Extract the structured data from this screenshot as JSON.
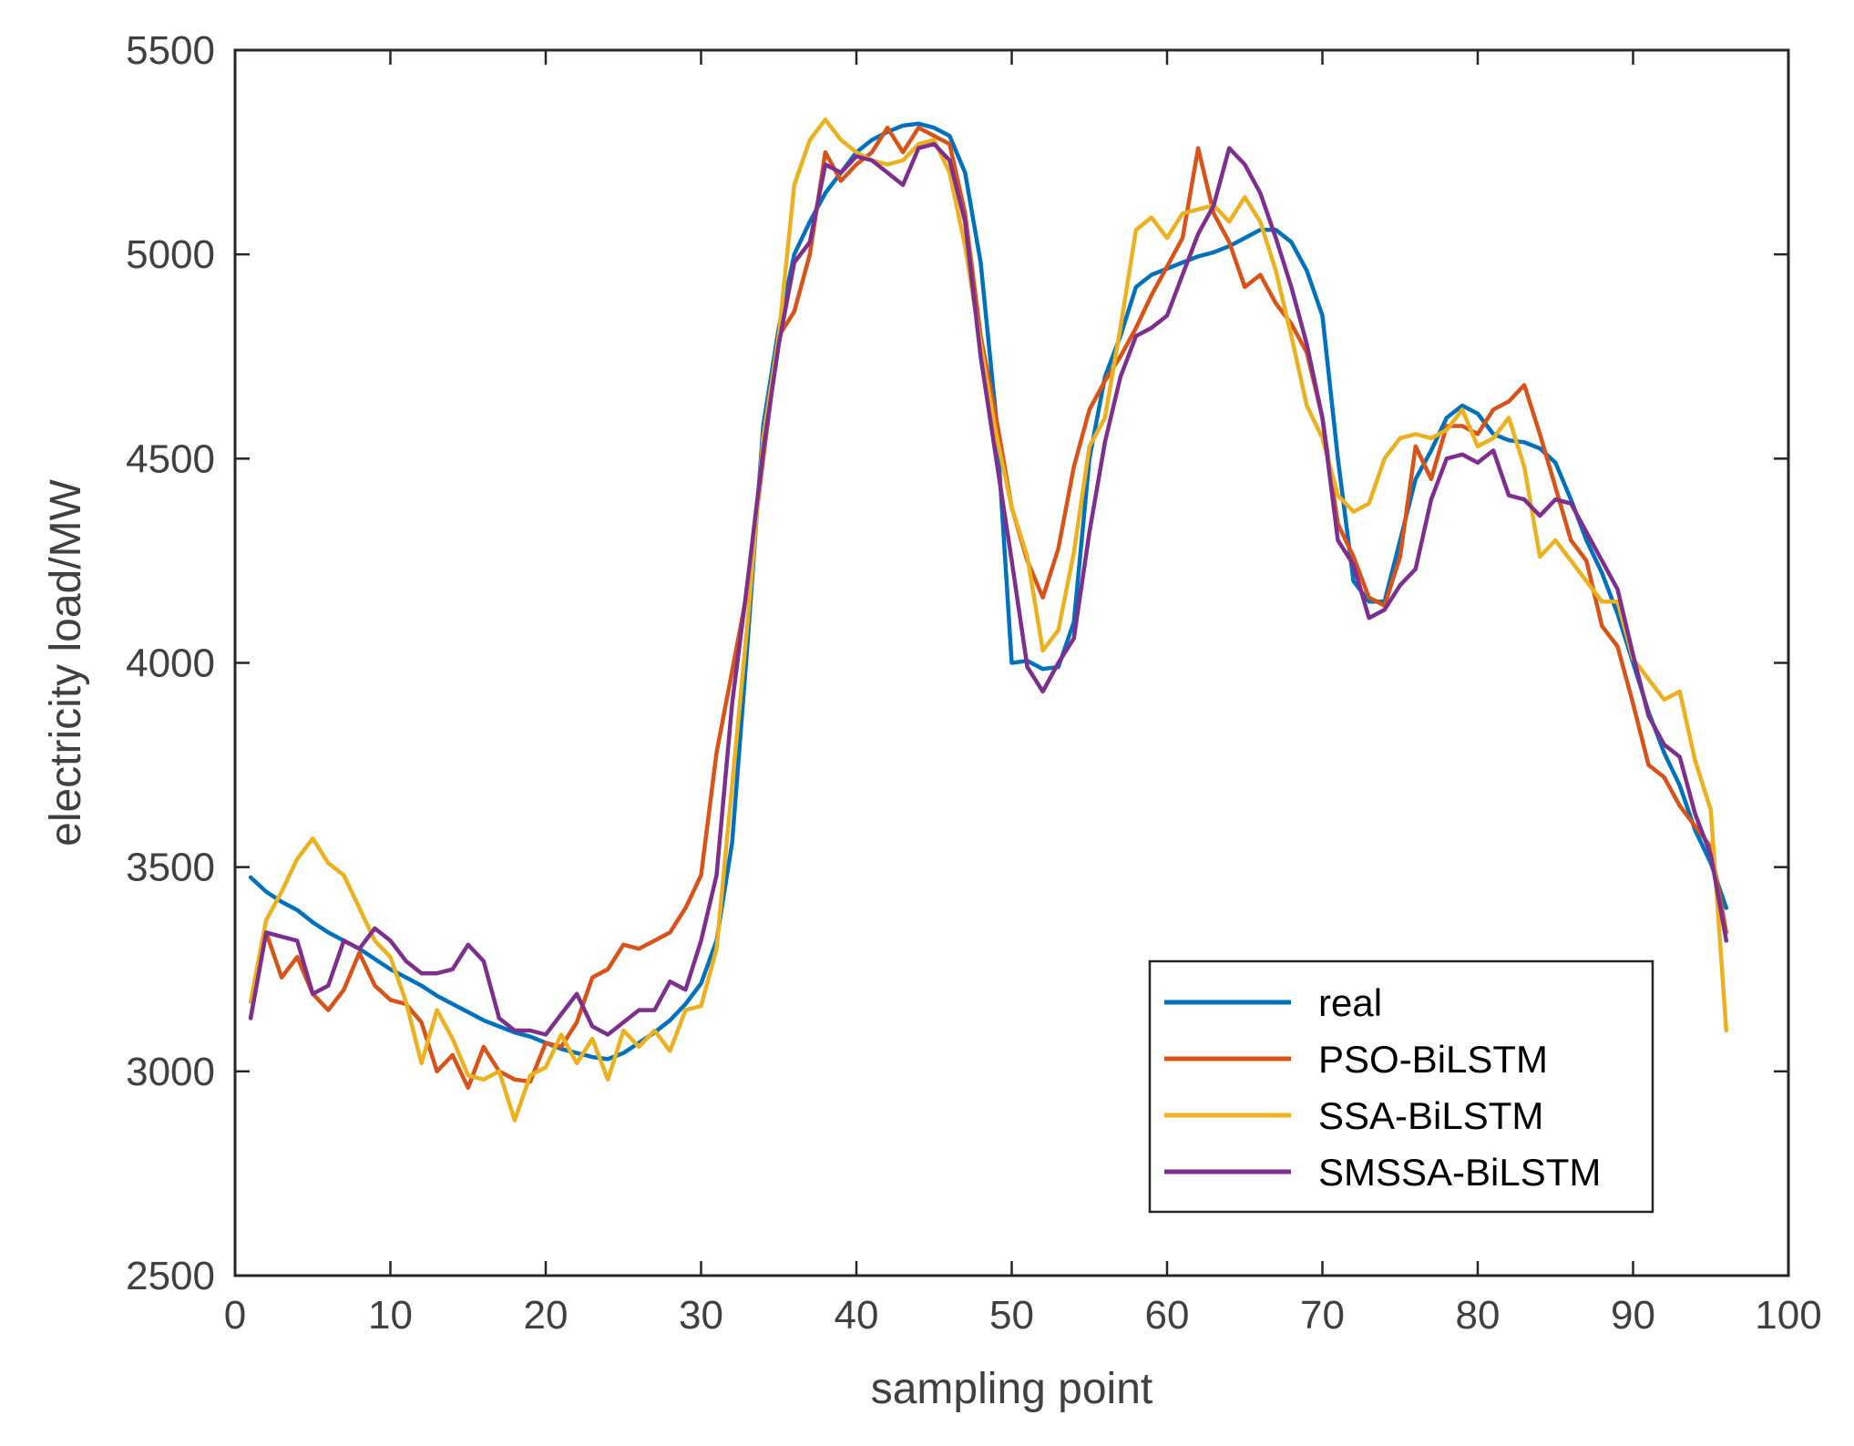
{
  "chart_data": {
    "type": "line",
    "title": "",
    "xlabel": "sampling point",
    "ylabel": "electricity load/MW",
    "xlim": [
      0,
      100
    ],
    "ylim": [
      2500,
      5500
    ],
    "xticks": [
      0,
      10,
      20,
      30,
      40,
      50,
      60,
      70,
      80,
      90,
      100
    ],
    "yticks": [
      2500,
      3000,
      3500,
      4000,
      4500,
      5000,
      5500
    ],
    "xtick_labels": [
      "0",
      "10",
      "20",
      "30",
      "40",
      "50",
      "60",
      "70",
      "80",
      "90",
      "100"
    ],
    "ytick_labels": [
      "2500",
      "3000",
      "3500",
      "4000",
      "4500",
      "5000",
      "5500"
    ],
    "grid": false,
    "legend_position": "bottom-right",
    "x": [
      1,
      2,
      3,
      4,
      5,
      6,
      7,
      8,
      9,
      10,
      11,
      12,
      13,
      14,
      15,
      16,
      17,
      18,
      19,
      20,
      21,
      22,
      23,
      24,
      25,
      26,
      27,
      28,
      29,
      30,
      31,
      32,
      33,
      34,
      35,
      36,
      37,
      38,
      39,
      40,
      41,
      42,
      43,
      44,
      45,
      46,
      47,
      48,
      49,
      50,
      51,
      52,
      53,
      54,
      55,
      56,
      57,
      58,
      59,
      60,
      61,
      62,
      63,
      64,
      65,
      66,
      67,
      68,
      69,
      70,
      71,
      72,
      73,
      74,
      75,
      76,
      77,
      78,
      79,
      80,
      81,
      82,
      83,
      84,
      85,
      86,
      87,
      88,
      89,
      90,
      91,
      92,
      93,
      94,
      95,
      96
    ],
    "series": [
      {
        "name": "real",
        "color": "#0072BD",
        "values": [
          3475,
          3440,
          3415,
          3395,
          3365,
          3340,
          3320,
          3300,
          3275,
          3250,
          3230,
          3210,
          3185,
          3165,
          3145,
          3125,
          3110,
          3095,
          3085,
          3070,
          3055,
          3045,
          3035,
          3030,
          3045,
          3070,
          3095,
          3125,
          3165,
          3215,
          3320,
          3560,
          4050,
          4580,
          4820,
          5000,
          5080,
          5150,
          5200,
          5250,
          5280,
          5300,
          5315,
          5320,
          5310,
          5290,
          5200,
          4980,
          4600,
          4000,
          4005,
          3985,
          3990,
          4100,
          4500,
          4700,
          4800,
          4920,
          4950,
          4965,
          4980,
          4995,
          5005,
          5020,
          5040,
          5060,
          5060,
          5030,
          4960,
          4850,
          4500,
          4200,
          4150,
          4150,
          4300,
          4450,
          4520,
          4600,
          4630,
          4610,
          4560,
          4545,
          4540,
          4525,
          4490,
          4400,
          4300,
          4220,
          4120,
          4000,
          3880,
          3780,
          3700,
          3590,
          3510,
          3400
        ]
      },
      {
        "name": "PSO-BiLSTM",
        "color": "#D95319",
        "values": [
          3130,
          3340,
          3230,
          3280,
          3190,
          3150,
          3200,
          3290,
          3210,
          3175,
          3165,
          3120,
          3000,
          3040,
          2960,
          3060,
          3000,
          2980,
          2975,
          3070,
          3060,
          3120,
          3230,
          3250,
          3310,
          3300,
          3320,
          3340,
          3400,
          3480,
          3780,
          3980,
          4180,
          4500,
          4800,
          4860,
          5000,
          5250,
          5180,
          5220,
          5250,
          5310,
          5250,
          5310,
          5290,
          5270,
          5100,
          4800,
          4600,
          4380,
          4250,
          4160,
          4280,
          4480,
          4620,
          4690,
          4750,
          4820,
          4900,
          4970,
          5040,
          5260,
          5100,
          5030,
          4920,
          4950,
          4880,
          4830,
          4760,
          4600,
          4340,
          4260,
          4160,
          4140,
          4260,
          4530,
          4450,
          4580,
          4580,
          4560,
          4620,
          4640,
          4680,
          4560,
          4430,
          4300,
          4250,
          4090,
          4040,
          3900,
          3750,
          3720,
          3650,
          3600,
          3550,
          3340
        ]
      },
      {
        "name": "SSA-BiLSTM",
        "color": "#EDB120",
        "values": [
          3170,
          3370,
          3440,
          3520,
          3570,
          3510,
          3480,
          3400,
          3320,
          3280,
          3170,
          3020,
          3150,
          3080,
          2990,
          2980,
          3000,
          2880,
          2990,
          3010,
          3090,
          3020,
          3080,
          2980,
          3100,
          3060,
          3100,
          3050,
          3150,
          3160,
          3300,
          3700,
          4100,
          4550,
          4800,
          5170,
          5280,
          5330,
          5280,
          5250,
          5230,
          5220,
          5230,
          5270,
          5280,
          5200,
          5020,
          4780,
          4560,
          4380,
          4260,
          4030,
          4080,
          4270,
          4530,
          4600,
          4820,
          5060,
          5090,
          5040,
          5100,
          5110,
          5120,
          5080,
          5140,
          5080,
          4960,
          4800,
          4630,
          4550,
          4410,
          4370,
          4390,
          4500,
          4550,
          4560,
          4550,
          4570,
          4620,
          4530,
          4550,
          4600,
          4480,
          4260,
          4300,
          4250,
          4200,
          4150,
          4150,
          4010,
          3960,
          3910,
          3930,
          3760,
          3640,
          3100
        ]
      },
      {
        "name": "SMSSA-BiLSTM",
        "color": "#7E2F8E",
        "values": [
          3130,
          3340,
          3330,
          3320,
          3190,
          3210,
          3320,
          3300,
          3350,
          3320,
          3270,
          3240,
          3240,
          3250,
          3310,
          3270,
          3130,
          3100,
          3100,
          3090,
          3140,
          3190,
          3110,
          3090,
          3120,
          3150,
          3150,
          3220,
          3200,
          3320,
          3480,
          3900,
          4200,
          4520,
          4780,
          4980,
          5030,
          5220,
          5200,
          5240,
          5230,
          5200,
          5170,
          5260,
          5270,
          5230,
          5080,
          4750,
          4500,
          4250,
          3990,
          3930,
          4000,
          4060,
          4320,
          4540,
          4700,
          4800,
          4820,
          4850,
          4950,
          5050,
          5120,
          5260,
          5220,
          5150,
          5040,
          4920,
          4780,
          4600,
          4300,
          4240,
          4110,
          4130,
          4190,
          4230,
          4400,
          4500,
          4510,
          4490,
          4520,
          4410,
          4400,
          4360,
          4400,
          4390,
          4320,
          4250,
          4180,
          4020,
          3870,
          3800,
          3770,
          3630,
          3530,
          3320
        ]
      }
    ]
  }
}
